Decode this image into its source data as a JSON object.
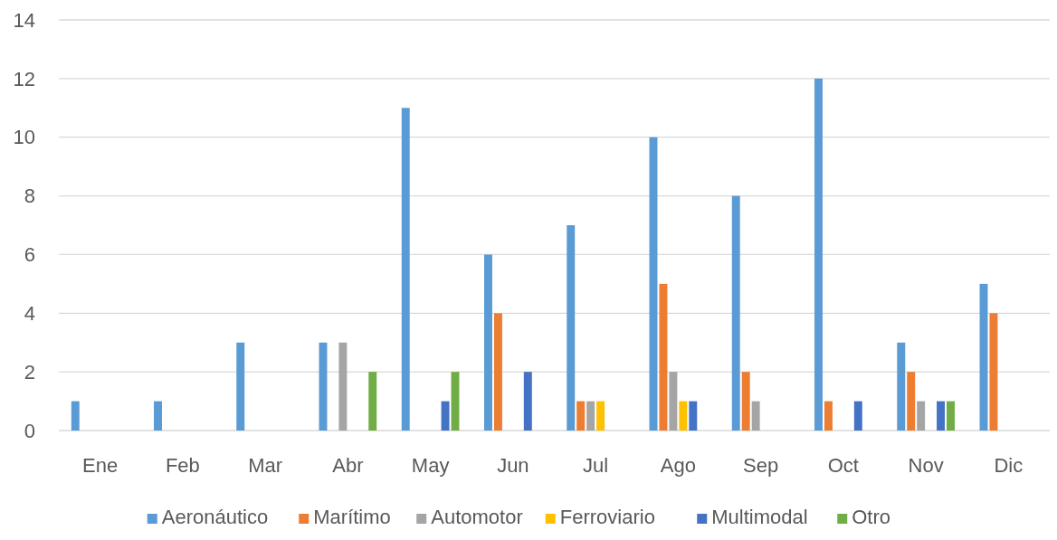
{
  "chart_data": {
    "type": "bar",
    "categories": [
      "Ene",
      "Feb",
      "Mar",
      "Abr",
      "May",
      "Jun",
      "Jul",
      "Ago",
      "Sep",
      "Oct",
      "Nov",
      "Dic"
    ],
    "series": [
      {
        "name": "Aeronáutico",
        "color": "#5b9bd5",
        "values": [
          1,
          1,
          3,
          3,
          11,
          6,
          7,
          10,
          8,
          12,
          3,
          5
        ]
      },
      {
        "name": "Marítimo",
        "color": "#ed7d31",
        "values": [
          0,
          0,
          0,
          0,
          0,
          4,
          1,
          5,
          2,
          1,
          2,
          4
        ]
      },
      {
        "name": "Automotor",
        "color": "#a5a5a5",
        "values": [
          0,
          0,
          0,
          3,
          0,
          0,
          1,
          2,
          1,
          0,
          1,
          0
        ]
      },
      {
        "name": "Ferroviario",
        "color": "#ffc000",
        "values": [
          0,
          0,
          0,
          0,
          0,
          0,
          1,
          1,
          0,
          0,
          0,
          0
        ]
      },
      {
        "name": "Multimodal",
        "color": "#4472c4",
        "values": [
          0,
          0,
          0,
          0,
          1,
          2,
          0,
          1,
          0,
          1,
          1,
          0
        ]
      },
      {
        "name": "Otro",
        "color": "#70ad47",
        "values": [
          0,
          0,
          0,
          2,
          2,
          0,
          0,
          0,
          0,
          0,
          1,
          0
        ]
      }
    ],
    "ylim": [
      0,
      14
    ],
    "yticks": [
      0,
      2,
      4,
      6,
      8,
      10,
      12,
      14
    ],
    "grid": "y",
    "legend": "bottom"
  }
}
